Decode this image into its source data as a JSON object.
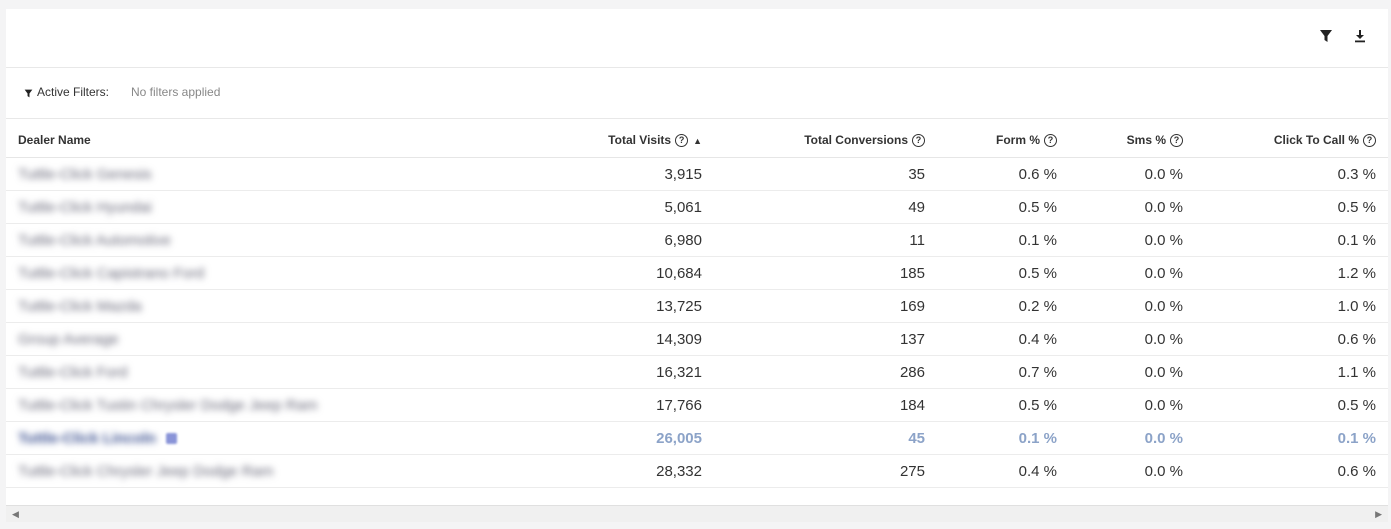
{
  "toolbar": {
    "filter_icon": "filter-icon",
    "download_icon": "download-icon"
  },
  "filters": {
    "label": "Active Filters:",
    "value": "No filters applied"
  },
  "table": {
    "headers": {
      "dealer": "Dealer Name",
      "visits": "Total Visits",
      "conversions": "Total Conversions",
      "form": "Form %",
      "sms": "Sms %",
      "ctc": "Click To Call %"
    },
    "rows": [
      {
        "name": "Tuttle-Click Genesis",
        "visits": "3,915",
        "conversions": "35",
        "form": "0.6 %",
        "sms": "0.0 %",
        "ctc": "0.3 %"
      },
      {
        "name": "Tuttle-Click Hyundai",
        "visits": "5,061",
        "conversions": "49",
        "form": "0.5 %",
        "sms": "0.0 %",
        "ctc": "0.5 %"
      },
      {
        "name": "Tuttle-Click Automotive",
        "visits": "6,980",
        "conversions": "11",
        "form": "0.1 %",
        "sms": "0.0 %",
        "ctc": "0.1 %"
      },
      {
        "name": "Tuttle-Click Capistrano Ford",
        "visits": "10,684",
        "conversions": "185",
        "form": "0.5 %",
        "sms": "0.0 %",
        "ctc": "1.2 %"
      },
      {
        "name": "Tuttle-Click Mazda",
        "visits": "13,725",
        "conversions": "169",
        "form": "0.2 %",
        "sms": "0.0 %",
        "ctc": "1.0 %"
      },
      {
        "name": "Group Average",
        "visits": "14,309",
        "conversions": "137",
        "form": "0.4 %",
        "sms": "0.0 %",
        "ctc": "0.6 %"
      },
      {
        "name": "Tuttle-Click Ford",
        "visits": "16,321",
        "conversions": "286",
        "form": "0.7 %",
        "sms": "0.0 %",
        "ctc": "1.1 %"
      },
      {
        "name": "Tuttle-Click Tustin Chrysler Dodge Jeep Ram",
        "visits": "17,766",
        "conversions": "184",
        "form": "0.5 %",
        "sms": "0.0 %",
        "ctc": "0.5 %"
      },
      {
        "name": "Tuttle-Click Lincoln",
        "visits": "26,005",
        "conversions": "45",
        "form": "0.1 %",
        "sms": "0.0 %",
        "ctc": "0.1 %",
        "highlight": true
      },
      {
        "name": "Tuttle-Click Chrysler Jeep Dodge Ram",
        "visits": "28,332",
        "conversions": "275",
        "form": "0.4 %",
        "sms": "0.0 %",
        "ctc": "0.6 %"
      }
    ]
  },
  "colors": {
    "highlight_value": "#8ca3c8",
    "highlight_name": "#3a4f8f"
  }
}
